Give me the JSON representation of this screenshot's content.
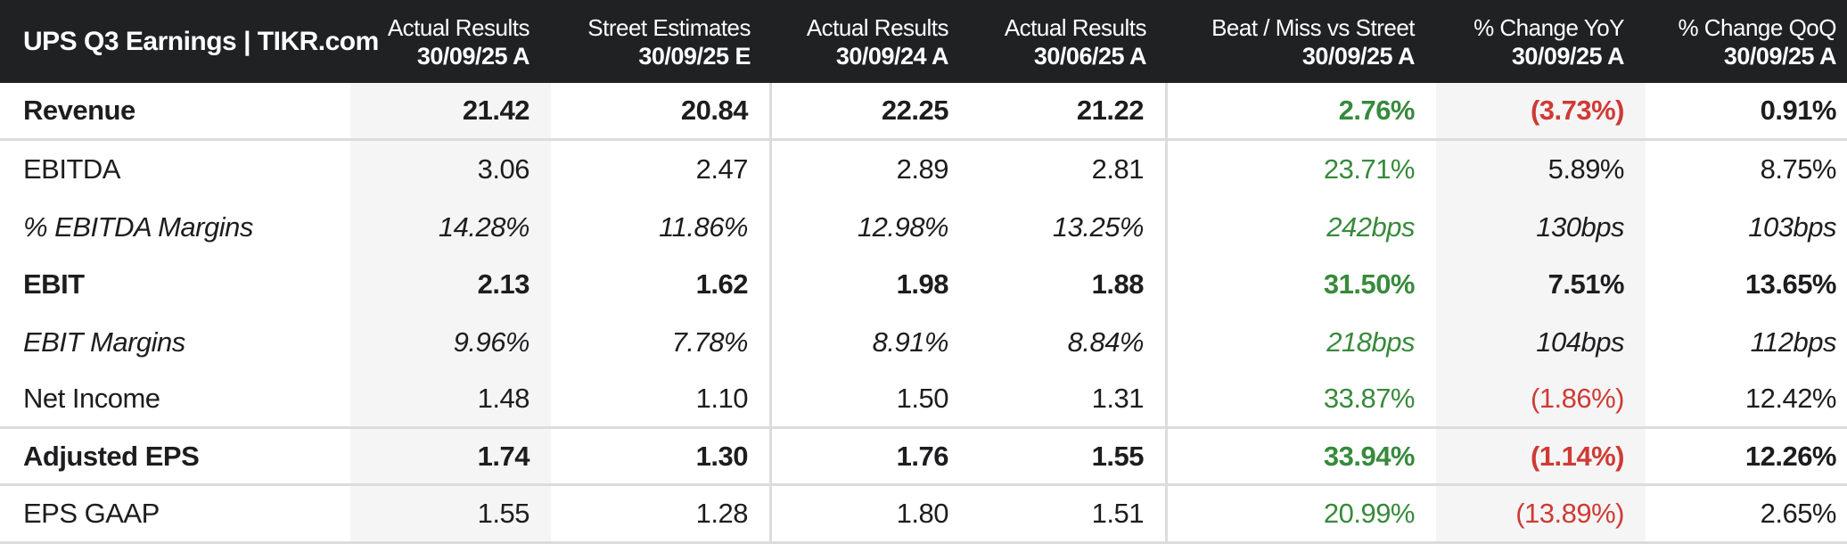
{
  "header": {
    "title": "UPS Q3 Earnings | TIKR.com",
    "columns": [
      {
        "line1": "Actual Results",
        "line2": "30/09/25 A"
      },
      {
        "line1": "Street Estimates",
        "line2": "30/09/25 E"
      },
      {
        "line1": "Actual Results",
        "line2": "30/09/24 A"
      },
      {
        "line1": "Actual Results",
        "line2": "30/06/25 A"
      },
      {
        "line1": "Beat / Miss vs Street",
        "line2": "30/09/25 A"
      },
      {
        "line1": "% Change YoY",
        "line2": "30/09/25 A"
      },
      {
        "line1": "% Change QoQ",
        "line2": "30/09/25 A"
      }
    ]
  },
  "rows": [
    {
      "label": "Revenue",
      "style": "bold",
      "cells": [
        "21.42",
        "20.84",
        "22.25",
        "21.22",
        "2.76%",
        "(3.73%)",
        "0.91%"
      ],
      "cell_colors": [
        "dark",
        "dark",
        "dark",
        "dark",
        "green",
        "red",
        "dark"
      ]
    },
    {
      "label": "EBITDA",
      "style": "regular",
      "cells": [
        "3.06",
        "2.47",
        "2.89",
        "2.81",
        "23.71%",
        "5.89%",
        "8.75%"
      ],
      "cell_colors": [
        "dark",
        "dark",
        "dark",
        "dark",
        "green",
        "dark",
        "dark"
      ]
    },
    {
      "label": "% EBITDA Margins",
      "style": "italic",
      "cells": [
        "14.28%",
        "11.86%",
        "12.98%",
        "13.25%",
        "242bps",
        "130bps",
        "103bps"
      ],
      "cell_colors": [
        "dark",
        "dark",
        "dark",
        "dark",
        "green",
        "dark",
        "dark"
      ]
    },
    {
      "label": "EBIT",
      "style": "bold",
      "cells": [
        "2.13",
        "1.62",
        "1.98",
        "1.88",
        "31.50%",
        "7.51%",
        "13.65%"
      ],
      "cell_colors": [
        "dark",
        "dark",
        "dark",
        "dark",
        "green",
        "dark",
        "dark"
      ]
    },
    {
      "label": "EBIT Margins",
      "style": "italic",
      "cells": [
        "9.96%",
        "7.78%",
        "8.91%",
        "8.84%",
        "218bps",
        "104bps",
        "112bps"
      ],
      "cell_colors": [
        "dark",
        "dark",
        "dark",
        "dark",
        "green",
        "dark",
        "dark"
      ]
    },
    {
      "label": "Net Income",
      "style": "regular",
      "cells": [
        "1.48",
        "1.10",
        "1.50",
        "1.31",
        "33.87%",
        "(1.86%)",
        "12.42%"
      ],
      "cell_colors": [
        "dark",
        "dark",
        "dark",
        "dark",
        "green",
        "red",
        "dark"
      ]
    },
    {
      "label": "Adjusted EPS",
      "style": "bold",
      "cells": [
        "1.74",
        "1.30",
        "1.76",
        "1.55",
        "33.94%",
        "(1.14%)",
        "12.26%"
      ],
      "cell_colors": [
        "dark",
        "dark",
        "dark",
        "dark",
        "green",
        "red",
        "dark"
      ]
    },
    {
      "label": "EPS GAAP",
      "style": "regular",
      "cells": [
        "1.55",
        "1.28",
        "1.80",
        "1.51",
        "20.99%",
        "(13.89%)",
        "2.65%"
      ],
      "cell_colors": [
        "dark",
        "dark",
        "dark",
        "dark",
        "green",
        "red",
        "dark"
      ]
    }
  ],
  "colors": {
    "header_background": "#1f2123",
    "header_text": "#ffffff",
    "body_text": "#1d1d1f",
    "positive_green": "#388a3c",
    "negative_red": "#cf3a34",
    "shaded_column": "#f5f5f6",
    "divider_line": "#dcdcdc"
  }
}
